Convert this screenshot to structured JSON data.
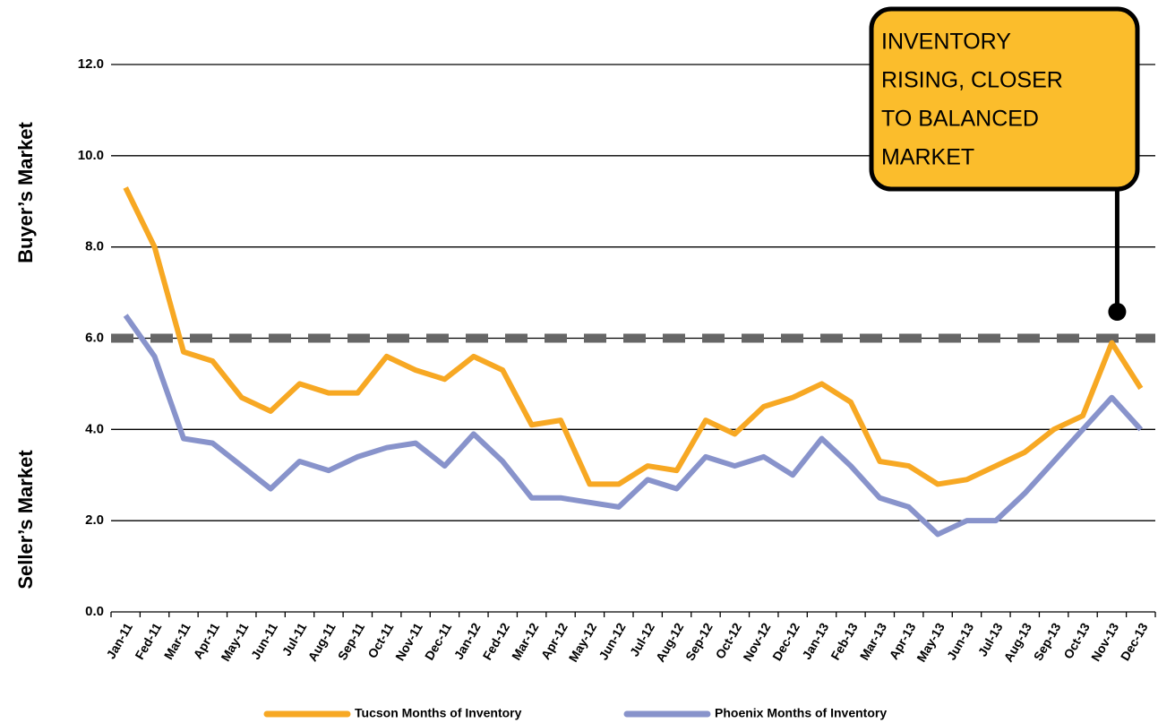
{
  "chart_data": {
    "type": "line",
    "y_label_top": "Buyer’s Market",
    "y_label_bottom": "Seller’s Market",
    "annotation": [
      "INVENTORY",
      "RISING, CLOSER",
      "TO BALANCED",
      "MARKET"
    ],
    "categories": [
      "Jan-11",
      "Fed-11",
      "Mar-11",
      "Apr-11",
      "May-11",
      "Jun-11",
      "Jul-11",
      "Aug-11",
      "Sep-11",
      "Oct-11",
      "Nov-11",
      "Dec-11",
      "Jan-12",
      "Fed-12",
      "Mar-12",
      "Apr-12",
      "May-12",
      "Jun-12",
      "Jul-12",
      "Aug-12",
      "Sep-12",
      "Oct-12",
      "Nov-12",
      "Dec-12",
      "Jan-13",
      "Feb-13",
      "Mar-13",
      "Apr-13",
      "May-13",
      "Jun-13",
      "Jul-13",
      "Aug-13",
      "Sep-13",
      "Oct-13",
      "Nov-13",
      "Dec-13"
    ],
    "series": [
      {
        "name": "Tucson Months of Inventory",
        "color": "#f7a823",
        "values": [
          9.3,
          8.0,
          5.7,
          5.5,
          4.7,
          4.4,
          5.0,
          4.8,
          4.8,
          5.6,
          5.3,
          5.1,
          5.6,
          5.3,
          4.1,
          4.2,
          2.8,
          2.8,
          3.2,
          3.1,
          4.2,
          3.9,
          4.5,
          4.7,
          5.0,
          4.6,
          3.3,
          3.2,
          2.8,
          2.9,
          3.2,
          3.5,
          4.0,
          4.3,
          5.9,
          4.9
        ]
      },
      {
        "name": "Phoenix Months of Inventory",
        "color": "#8893cb",
        "values": [
          6.5,
          5.6,
          3.8,
          3.7,
          3.2,
          2.7,
          3.3,
          3.1,
          3.4,
          3.6,
          3.7,
          3.2,
          3.9,
          3.3,
          2.5,
          2.5,
          2.4,
          2.3,
          2.9,
          2.7,
          3.4,
          3.2,
          3.4,
          3.0,
          3.8,
          3.2,
          2.5,
          2.3,
          1.7,
          2.0,
          2.0,
          2.6,
          3.3,
          4.0,
          4.7,
          4.0
        ]
      }
    ],
    "threshold": 6,
    "threshold_color": "#666666",
    "ylim": [
      0,
      12
    ],
    "yticks": [
      {
        "value": 0,
        "label": "0.0"
      },
      {
        "value": 2,
        "label": "2.0"
      },
      {
        "value": 4,
        "label": "4.0"
      },
      {
        "value": 6,
        "label": "6.0"
      },
      {
        "value": 8,
        "label": "8.0"
      },
      {
        "value": 10,
        "label": "10.0"
      },
      {
        "value": 12,
        "label": "12.0"
      }
    ],
    "grid": true,
    "legend": "bottom"
  }
}
